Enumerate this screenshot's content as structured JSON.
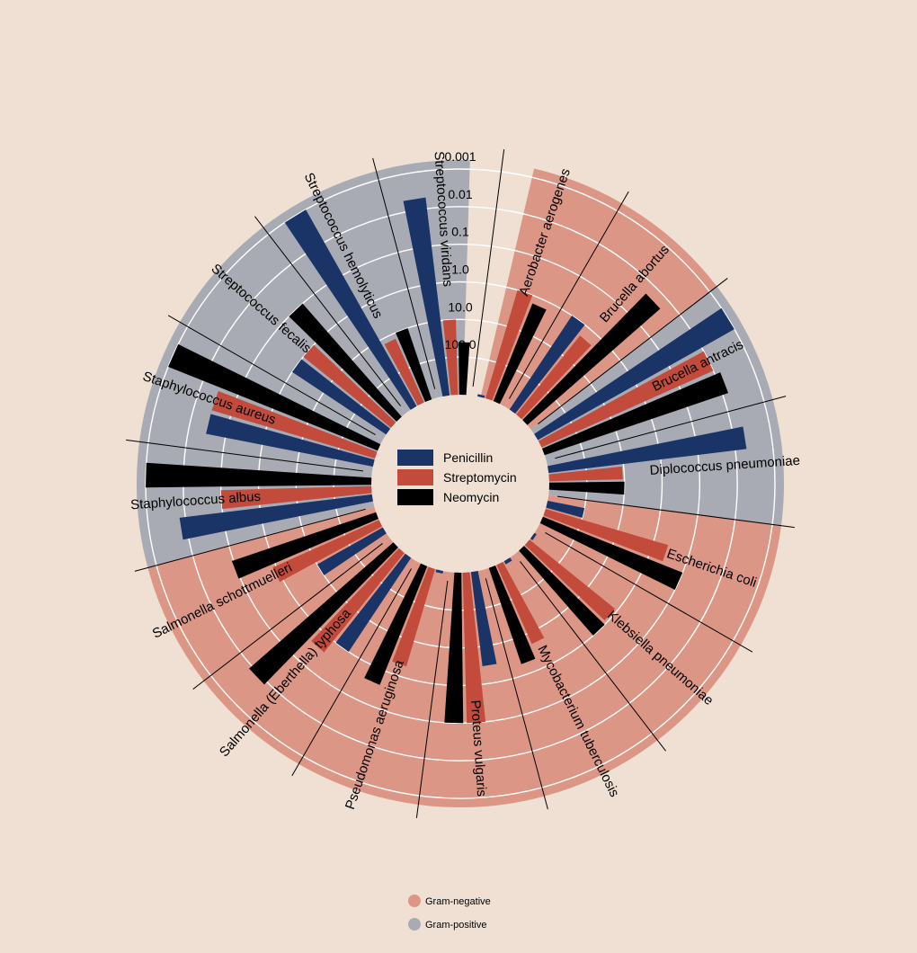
{
  "chart_data": {
    "type": "radial-bar",
    "scale": "log",
    "radial_ticks": [
      "0.001",
      "0.01",
      "0.1",
      "1.0",
      "10.0",
      "100.0"
    ],
    "legend": [
      "Penicillin",
      "Streptomycin",
      "Neomycin"
    ],
    "colors": {
      "Penicillin": "#1a3468",
      "Streptomycin": "#c24b3c",
      "Neomycin": "#000000",
      "Gram-negative": "#dc9686",
      "Gram-positive": "#a9abb4",
      "background": "#efe0d3"
    },
    "gram_legend": [
      {
        "label": "Gram-negative",
        "color": "#dc9686"
      },
      {
        "label": "Gram-positive",
        "color": "#a9abb4"
      }
    ],
    "bacteria": [
      {
        "name": "Aerobacter aerogenes",
        "gram": "negative",
        "penicillin": 870,
        "streptomycin": 1,
        "neomycin": 1.6
      },
      {
        "name": "Brucella abortus",
        "gram": "negative",
        "penicillin": 1,
        "streptomycin": 2,
        "neomycin": 0.02
      },
      {
        "name": "Brucella antracis",
        "gram": "positive",
        "penicillin": 0.001,
        "streptomycin": 0.01,
        "neomycin": 0.007
      },
      {
        "name": "Diplococcus pneumoniae",
        "gram": "positive",
        "penicillin": 0.005,
        "streptomycin": 11,
        "neomycin": 10
      },
      {
        "name": "Escherichia coli",
        "gram": "negative",
        "penicillin": 100,
        "streptomycin": 0.4,
        "neomycin": 0.1
      },
      {
        "name": "Klebsiella pneumoniae",
        "gram": "negative",
        "penicillin": 850,
        "streptomycin": 1.2,
        "neomycin": 1
      },
      {
        "name": "Mycobacterium tuberculosis",
        "gram": "negative",
        "penicillin": 800,
        "streptomycin": 5,
        "neomycin": 2
      },
      {
        "name": "Proteus vulgaris",
        "gram": "negative",
        "penicillin": 3,
        "streptomycin": 0.1,
        "neomycin": 0.1
      },
      {
        "name": "Pseudomonas aeruginosa",
        "gram": "negative",
        "penicillin": 850,
        "streptomycin": 2,
        "neomycin": 0.4
      },
      {
        "name": "Salmonella (Eberthella) typhosa",
        "gram": "negative",
        "penicillin": 1,
        "streptomycin": 0.4,
        "neomycin": 0.008
      },
      {
        "name": "Salmonella schottmuelleri",
        "gram": "negative",
        "penicillin": 10,
        "streptomycin": 0.8,
        "neomycin": 0.09
      },
      {
        "name": "Staphylococcus albus",
        "gram": "positive",
        "penicillin": 0.007,
        "streptomycin": 0.1,
        "neomycin": 0.001
      },
      {
        "name": "Staphylococcus aureus",
        "gram": "positive",
        "penicillin": 0.03,
        "streptomycin": 0.03,
        "neomycin": 0.001
      },
      {
        "name": "Streptococcus fecalis",
        "gram": "positive",
        "penicillin": 1,
        "streptomycin": 1,
        "neomycin": 0.1
      },
      {
        "name": "Streptococcus hemolyticus",
        "gram": "positive",
        "penicillin": 0.001,
        "streptomycin": 14,
        "neomycin": 10
      },
      {
        "name": "Streptococcus viridans",
        "gram": "positive",
        "penicillin": 0.005,
        "streptomycin": 10,
        "neomycin": 40
      }
    ]
  }
}
